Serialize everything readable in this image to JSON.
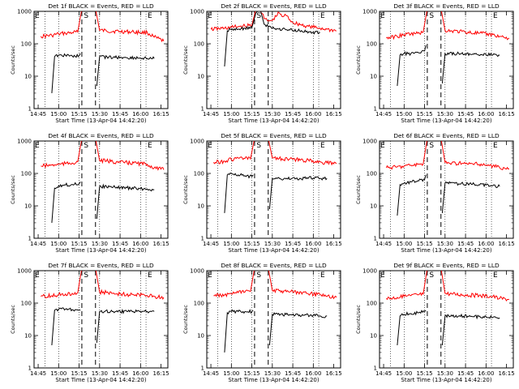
{
  "figure": {
    "ylabel": "Counts/sec",
    "xlabel": "Start Time (13-Apr-04 14:42:20)",
    "title_suffix": "BLACK = Events, RED = LLD",
    "marker_E": "E",
    "marker_S": "S",
    "colors": {
      "events": "#000000",
      "lld": "#ff0000",
      "axis": "#000000"
    }
  },
  "chart_data": [
    {
      "type": "line",
      "title": "Det 1f BLACK = Events, RED = LLD",
      "xlabel": "Start Time (13-Apr-04 14:42:20)",
      "ylabel": "Counts/sec",
      "x_scale": "time",
      "y_scale": "log",
      "ylim": [
        1,
        1000
      ],
      "x_ticks": [
        "14:45",
        "15:00",
        "15:15",
        "15:30",
        "15:45",
        "16:00",
        "16:15"
      ],
      "y_ticks": [
        "1",
        "10",
        "100",
        "1000"
      ],
      "markers": {
        "E_start": "14:50",
        "S_start": "15:17",
        "S_end": "15:27",
        "E_end": "16:04"
      },
      "series": [
        {
          "name": "Events",
          "color": "#000000",
          "gap": [
            "15:17",
            "15:27"
          ],
          "x": [
            "14:55",
            "14:57",
            "15:00",
            "15:05",
            "15:10",
            "15:15",
            "15:16",
            "15:28",
            "15:30",
            "15:40",
            "15:50",
            "16:00",
            "16:05",
            "16:10"
          ],
          "y": [
            3,
            40,
            45,
            44,
            42,
            43,
            50,
            5,
            40,
            38,
            37,
            36,
            35,
            35
          ]
        },
        {
          "name": "LLD",
          "color": "#ff0000",
          "x": [
            "14:47",
            "14:55",
            "15:00",
            "15:05",
            "15:10",
            "15:14",
            "15:17",
            "15:19",
            "15:24",
            "15:27",
            "15:30",
            "15:35",
            "15:45",
            "15:55",
            "16:05",
            "16:10",
            "16:17"
          ],
          "y": [
            170,
            180,
            200,
            210,
            220,
            230,
            1200,
            1200,
            1200,
            1200,
            260,
            250,
            240,
            230,
            220,
            160,
            120
          ]
        }
      ]
    },
    {
      "type": "line",
      "title": "Det 2f BLACK = Events, RED = LLD",
      "xlabel": "Start Time (13-Apr-04 14:42:20)",
      "ylabel": "Counts/sec",
      "x_scale": "time",
      "y_scale": "log",
      "ylim": [
        1,
        1000
      ],
      "x_ticks": [
        "14:45",
        "15:00",
        "15:15",
        "15:30",
        "15:45",
        "16:00",
        "16:15"
      ],
      "y_ticks": [
        "1",
        "10",
        "100",
        "1000"
      ],
      "markers": {
        "E_start": "14:50",
        "S_start": "15:17",
        "S_end": "15:27",
        "E_end": "16:04"
      },
      "series": [
        {
          "name": "Events",
          "color": "#000000",
          "gap": [],
          "x": [
            "14:55",
            "14:57",
            "15:00",
            "15:05",
            "15:10",
            "15:15",
            "15:18",
            "15:21",
            "15:24",
            "15:27",
            "15:30",
            "15:40",
            "15:50",
            "16:00",
            "16:05"
          ],
          "y": [
            20,
            250,
            270,
            280,
            300,
            310,
            900,
            1200,
            400,
            330,
            300,
            270,
            250,
            230,
            220
          ]
        },
        {
          "name": "LLD",
          "color": "#ff0000",
          "x": [
            "14:45",
            "14:55",
            "15:00",
            "15:05",
            "15:10",
            "15:15",
            "15:18",
            "15:21",
            "15:24",
            "15:27",
            "15:30",
            "15:35",
            "15:37",
            "15:40",
            "15:45",
            "15:55",
            "16:05",
            "16:10",
            "16:17"
          ],
          "y": [
            280,
            300,
            320,
            340,
            350,
            370,
            1200,
            1200,
            600,
            500,
            520,
            900,
            700,
            750,
            450,
            350,
            300,
            280,
            250
          ]
        }
      ]
    },
    {
      "type": "line",
      "title": "Det 3f BLACK = Events, RED = LLD",
      "xlabel": "Start Time (13-Apr-04 14:42:20)",
      "ylabel": "Counts/sec",
      "x_scale": "time",
      "y_scale": "log",
      "ylim": [
        1,
        1000
      ],
      "x_ticks": [
        "14:45",
        "15:00",
        "15:15",
        "15:30",
        "15:45",
        "16:00",
        "16:15"
      ],
      "y_ticks": [
        "1",
        "10",
        "100",
        "1000"
      ],
      "markers": {
        "E_start": "14:50",
        "S_start": "15:17",
        "S_end": "15:27",
        "E_end": "16:04"
      },
      "series": [
        {
          "name": "Events",
          "color": "#000000",
          "gap": [
            "15:17",
            "15:27"
          ],
          "x": [
            "14:55",
            "14:57",
            "15:00",
            "15:05",
            "15:10",
            "15:15",
            "15:16",
            "15:28",
            "15:30",
            "15:40",
            "15:50",
            "16:00",
            "16:05",
            "16:10"
          ],
          "y": [
            5,
            45,
            50,
            50,
            55,
            60,
            90,
            6,
            50,
            50,
            48,
            46,
            45,
            44
          ]
        },
        {
          "name": "LLD",
          "color": "#ff0000",
          "x": [
            "14:47",
            "14:55",
            "15:00",
            "15:05",
            "15:10",
            "15:14",
            "15:17",
            "15:19",
            "15:24",
            "15:27",
            "15:30",
            "15:35",
            "15:45",
            "15:55",
            "16:05",
            "16:10",
            "16:17"
          ],
          "y": [
            150,
            170,
            190,
            200,
            210,
            230,
            1200,
            1200,
            1200,
            1200,
            260,
            250,
            230,
            210,
            190,
            170,
            150
          ]
        }
      ]
    },
    {
      "type": "line",
      "title": "Det 4f BLACK = Events, RED = LLD",
      "xlabel": "Start Time (13-Apr-04 14:42:20)",
      "ylabel": "Counts/sec",
      "x_scale": "time",
      "y_scale": "log",
      "ylim": [
        1,
        1000
      ],
      "x_ticks": [
        "14:45",
        "15:00",
        "15:15",
        "15:30",
        "15:45",
        "16:00",
        "16:15"
      ],
      "y_ticks": [
        "1",
        "10",
        "100",
        "1000"
      ],
      "markers": {
        "E_start": "14:50",
        "S_start": "15:17",
        "S_end": "15:27",
        "E_end": "16:04"
      },
      "series": [
        {
          "name": "Events",
          "color": "#000000",
          "gap": [
            "15:17",
            "15:27"
          ],
          "x": [
            "14:55",
            "14:57",
            "15:00",
            "15:05",
            "15:10",
            "15:15",
            "15:16",
            "15:28",
            "15:30",
            "15:40",
            "15:50",
            "16:00",
            "16:05",
            "16:10"
          ],
          "y": [
            3,
            35,
            42,
            44,
            46,
            48,
            55,
            4,
            40,
            38,
            36,
            34,
            33,
            32
          ]
        },
        {
          "name": "LLD",
          "color": "#ff0000",
          "x": [
            "14:47",
            "14:55",
            "15:00",
            "15:05",
            "15:10",
            "15:14",
            "15:17",
            "15:19",
            "15:24",
            "15:27",
            "15:30",
            "15:35",
            "15:45",
            "15:55",
            "16:05",
            "16:10",
            "16:17"
          ],
          "y": [
            170,
            180,
            190,
            200,
            210,
            230,
            1200,
            1200,
            1200,
            1200,
            250,
            240,
            220,
            210,
            190,
            150,
            130
          ]
        }
      ]
    },
    {
      "type": "line",
      "title": "Det 5f BLACK = Events, RED = LLD",
      "xlabel": "Start Time (13-Apr-04 14:42:20)",
      "ylabel": "Counts/sec",
      "x_scale": "time",
      "y_scale": "log",
      "ylim": [
        1,
        1000
      ],
      "x_ticks": [
        "14:45",
        "15:00",
        "15:15",
        "15:30",
        "15:45",
        "16:00",
        "16:15"
      ],
      "y_ticks": [
        "1",
        "10",
        "100",
        "1000"
      ],
      "markers": {
        "E_start": "14:50",
        "S_start": "15:17",
        "S_end": "15:27",
        "E_end": "16:04"
      },
      "series": [
        {
          "name": "Events",
          "color": "#000000",
          "gap": [
            "15:17",
            "15:27"
          ],
          "x": [
            "14:55",
            "14:57",
            "15:00",
            "15:05",
            "15:10",
            "15:15",
            "15:16",
            "15:28",
            "15:30",
            "15:40",
            "15:50",
            "16:00",
            "16:05",
            "16:10"
          ],
          "y": [
            6,
            90,
            100,
            90,
            85,
            80,
            90,
            8,
            70,
            68,
            70,
            72,
            70,
            70
          ]
        },
        {
          "name": "LLD",
          "color": "#ff0000",
          "x": [
            "14:47",
            "14:55",
            "15:00",
            "15:05",
            "15:10",
            "15:14",
            "15:17",
            "15:19",
            "15:24",
            "15:27",
            "15:30",
            "15:35",
            "15:45",
            "15:55",
            "16:05",
            "16:10",
            "16:17"
          ],
          "y": [
            220,
            240,
            270,
            300,
            290,
            280,
            1200,
            1200,
            1200,
            1200,
            300,
            290,
            270,
            250,
            230,
            210,
            200
          ]
        }
      ]
    },
    {
      "type": "line",
      "title": "Det 6f BLACK = Events, RED = LLD",
      "xlabel": "Start Time (13-Apr-04 14:42:20)",
      "ylabel": "Counts/sec",
      "x_scale": "time",
      "y_scale": "log",
      "ylim": [
        1,
        1000
      ],
      "x_ticks": [
        "14:45",
        "15:00",
        "15:15",
        "15:30",
        "15:45",
        "16:00",
        "16:15"
      ],
      "y_ticks": [
        "1",
        "10",
        "100",
        "1000"
      ],
      "markers": {
        "E_start": "14:50",
        "S_start": "15:17",
        "S_end": "15:27",
        "E_end": "16:04"
      },
      "series": [
        {
          "name": "Events",
          "color": "#000000",
          "gap": [
            "15:17",
            "15:27"
          ],
          "x": [
            "14:55",
            "14:57",
            "15:00",
            "15:05",
            "15:10",
            "15:15",
            "15:16",
            "15:28",
            "15:30",
            "15:40",
            "15:50",
            "16:00",
            "16:05",
            "16:10"
          ],
          "y": [
            5,
            45,
            50,
            55,
            60,
            65,
            90,
            6,
            50,
            48,
            46,
            44,
            42,
            40
          ]
        },
        {
          "name": "LLD",
          "color": "#ff0000",
          "x": [
            "14:47",
            "14:55",
            "15:00",
            "15:05",
            "15:10",
            "15:14",
            "15:17",
            "15:19",
            "15:24",
            "15:27",
            "15:30",
            "15:35",
            "15:45",
            "15:55",
            "16:05",
            "16:10",
            "16:17"
          ],
          "y": [
            150,
            160,
            170,
            180,
            190,
            200,
            1200,
            1200,
            1200,
            1200,
            220,
            210,
            200,
            190,
            170,
            150,
            140
          ]
        }
      ]
    },
    {
      "type": "line",
      "title": "Det 7f BLACK = Events, RED = LLD",
      "xlabel": "Start Time (13-Apr-04 14:42:20)",
      "ylabel": "Counts/sec",
      "x_scale": "time",
      "y_scale": "log",
      "ylim": [
        1,
        1000
      ],
      "x_ticks": [
        "14:45",
        "15:00",
        "15:15",
        "15:30",
        "15:45",
        "16:00",
        "16:15"
      ],
      "y_ticks": [
        "1",
        "10",
        "100",
        "1000"
      ],
      "markers": {
        "E_start": "14:50",
        "S_start": "15:17",
        "S_end": "15:27",
        "E_end": "16:04"
      },
      "series": [
        {
          "name": "Events",
          "color": "#000000",
          "gap": [
            "15:17",
            "15:27"
          ],
          "x": [
            "14:55",
            "14:57",
            "15:00",
            "15:05",
            "15:10",
            "15:15",
            "15:16",
            "15:28",
            "15:30",
            "15:40",
            "15:50",
            "16:00",
            "16:05",
            "16:10"
          ],
          "y": [
            5,
            60,
            65,
            65,
            63,
            62,
            60,
            6,
            55,
            55,
            55,
            55,
            55,
            55
          ]
        },
        {
          "name": "LLD",
          "color": "#ff0000",
          "x": [
            "14:47",
            "14:55",
            "15:00",
            "15:05",
            "15:10",
            "15:14",
            "15:17",
            "15:19",
            "15:24",
            "15:27",
            "15:30",
            "15:35",
            "15:45",
            "15:55",
            "16:05",
            "16:10",
            "16:17"
          ],
          "y": [
            160,
            170,
            180,
            190,
            200,
            210,
            1200,
            1200,
            1200,
            1200,
            220,
            210,
            190,
            180,
            170,
            160,
            150
          ]
        }
      ]
    },
    {
      "type": "line",
      "title": "Det 8f BLACK = Events, RED = LLD",
      "xlabel": "Start Time (13-Apr-04 14:42:20)",
      "ylabel": "Counts/sec",
      "x_scale": "time",
      "y_scale": "log",
      "ylim": [
        1,
        1000
      ],
      "x_ticks": [
        "14:45",
        "15:00",
        "15:15",
        "15:30",
        "15:45",
        "16:00",
        "16:15"
      ],
      "y_ticks": [
        "1",
        "10",
        "100",
        "1000"
      ],
      "markers": {
        "E_start": "14:50",
        "S_start": "15:17",
        "S_end": "15:27",
        "E_end": "16:04"
      },
      "series": [
        {
          "name": "Events",
          "color": "#000000",
          "gap": [
            "15:17",
            "15:27"
          ],
          "x": [
            "14:55",
            "14:57",
            "15:00",
            "15:05",
            "15:10",
            "15:15",
            "15:16",
            "15:28",
            "15:30",
            "15:40",
            "15:50",
            "16:00",
            "16:05",
            "16:10"
          ],
          "y": [
            3,
            50,
            55,
            55,
            55,
            55,
            60,
            5,
            45,
            45,
            43,
            42,
            40,
            40
          ]
        },
        {
          "name": "LLD",
          "color": "#ff0000",
          "x": [
            "14:47",
            "14:55",
            "15:00",
            "15:05",
            "15:10",
            "15:14",
            "15:17",
            "15:19",
            "15:24",
            "15:27",
            "15:30",
            "15:35",
            "15:45",
            "15:55",
            "16:05",
            "16:10",
            "16:17"
          ],
          "y": [
            170,
            180,
            190,
            210,
            220,
            230,
            1200,
            1200,
            1200,
            1200,
            250,
            240,
            220,
            200,
            180,
            160,
            150
          ]
        }
      ]
    },
    {
      "type": "line",
      "title": "Det 9f BLACK = Events, RED = LLD",
      "xlabel": "Start Time (13-Apr-04 14:42:20)",
      "ylabel": "Counts/sec",
      "x_scale": "time",
      "y_scale": "log",
      "ylim": [
        1,
        1000
      ],
      "x_ticks": [
        "14:45",
        "15:00",
        "15:15",
        "15:30",
        "15:45",
        "16:00",
        "16:15"
      ],
      "y_ticks": [
        "1",
        "10",
        "100",
        "1000"
      ],
      "markers": {
        "E_start": "14:50",
        "S_start": "15:17",
        "S_end": "15:27",
        "E_end": "16:04"
      },
      "series": [
        {
          "name": "Events",
          "color": "#000000",
          "gap": [
            "15:17",
            "15:27"
          ],
          "x": [
            "14:55",
            "14:57",
            "15:00",
            "15:05",
            "15:10",
            "15:15",
            "15:16",
            "15:28",
            "15:30",
            "15:40",
            "15:50",
            "16:00",
            "16:05",
            "16:10"
          ],
          "y": [
            5,
            40,
            45,
            48,
            50,
            55,
            60,
            5,
            40,
            40,
            38,
            38,
            36,
            35
          ]
        },
        {
          "name": "LLD",
          "color": "#ff0000",
          "x": [
            "14:47",
            "14:55",
            "15:00",
            "15:05",
            "15:10",
            "15:14",
            "15:17",
            "15:19",
            "15:24",
            "15:27",
            "15:30",
            "15:35",
            "15:45",
            "15:55",
            "16:05",
            "16:10",
            "16:17"
          ],
          "y": [
            140,
            150,
            160,
            170,
            180,
            190,
            1200,
            1200,
            1200,
            1200,
            200,
            190,
            180,
            170,
            160,
            140,
            130
          ]
        }
      ]
    }
  ]
}
